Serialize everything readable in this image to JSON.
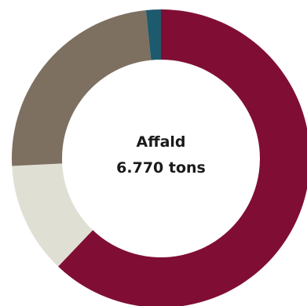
{
  "chart_data": {
    "type": "pie",
    "center_title": "Affald",
    "center_value": "6.770 tons",
    "slices": [
      {
        "value": 62.1,
        "color": "#800e34"
      },
      {
        "value": 12.1,
        "color": "#e0dfd3"
      },
      {
        "value": 24.2,
        "color": "#7d7060"
      },
      {
        "value": 1.6,
        "color": "#1e5a6d"
      }
    ]
  }
}
